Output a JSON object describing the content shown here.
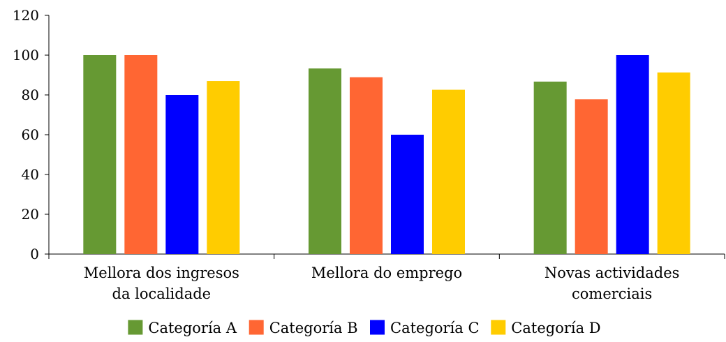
{
  "chart_data": {
    "type": "bar",
    "title": "",
    "xlabel": "",
    "ylabel": "",
    "ylim": [
      0,
      120
    ],
    "yticks": [
      0,
      20,
      40,
      60,
      80,
      100,
      120
    ],
    "grid": false,
    "legend_position": "bottom",
    "categories": [
      [
        "Mellora dos ingresos",
        "da localidade"
      ],
      [
        "Mellora do emprego"
      ],
      [
        "Novas actividades",
        "comerciais"
      ]
    ],
    "series": [
      {
        "name": "Categoría A",
        "color": "#669933",
        "values": [
          100,
          93.3,
          86.7
        ]
      },
      {
        "name": "Categoría B",
        "color": "#FF6633",
        "values": [
          100,
          88.9,
          77.8
        ]
      },
      {
        "name": "Categoría C",
        "color": "#0000FF",
        "values": [
          80,
          60,
          100
        ]
      },
      {
        "name": "Categoría D",
        "color": "#FFCC00",
        "values": [
          87,
          82.6,
          91.3
        ]
      }
    ]
  }
}
